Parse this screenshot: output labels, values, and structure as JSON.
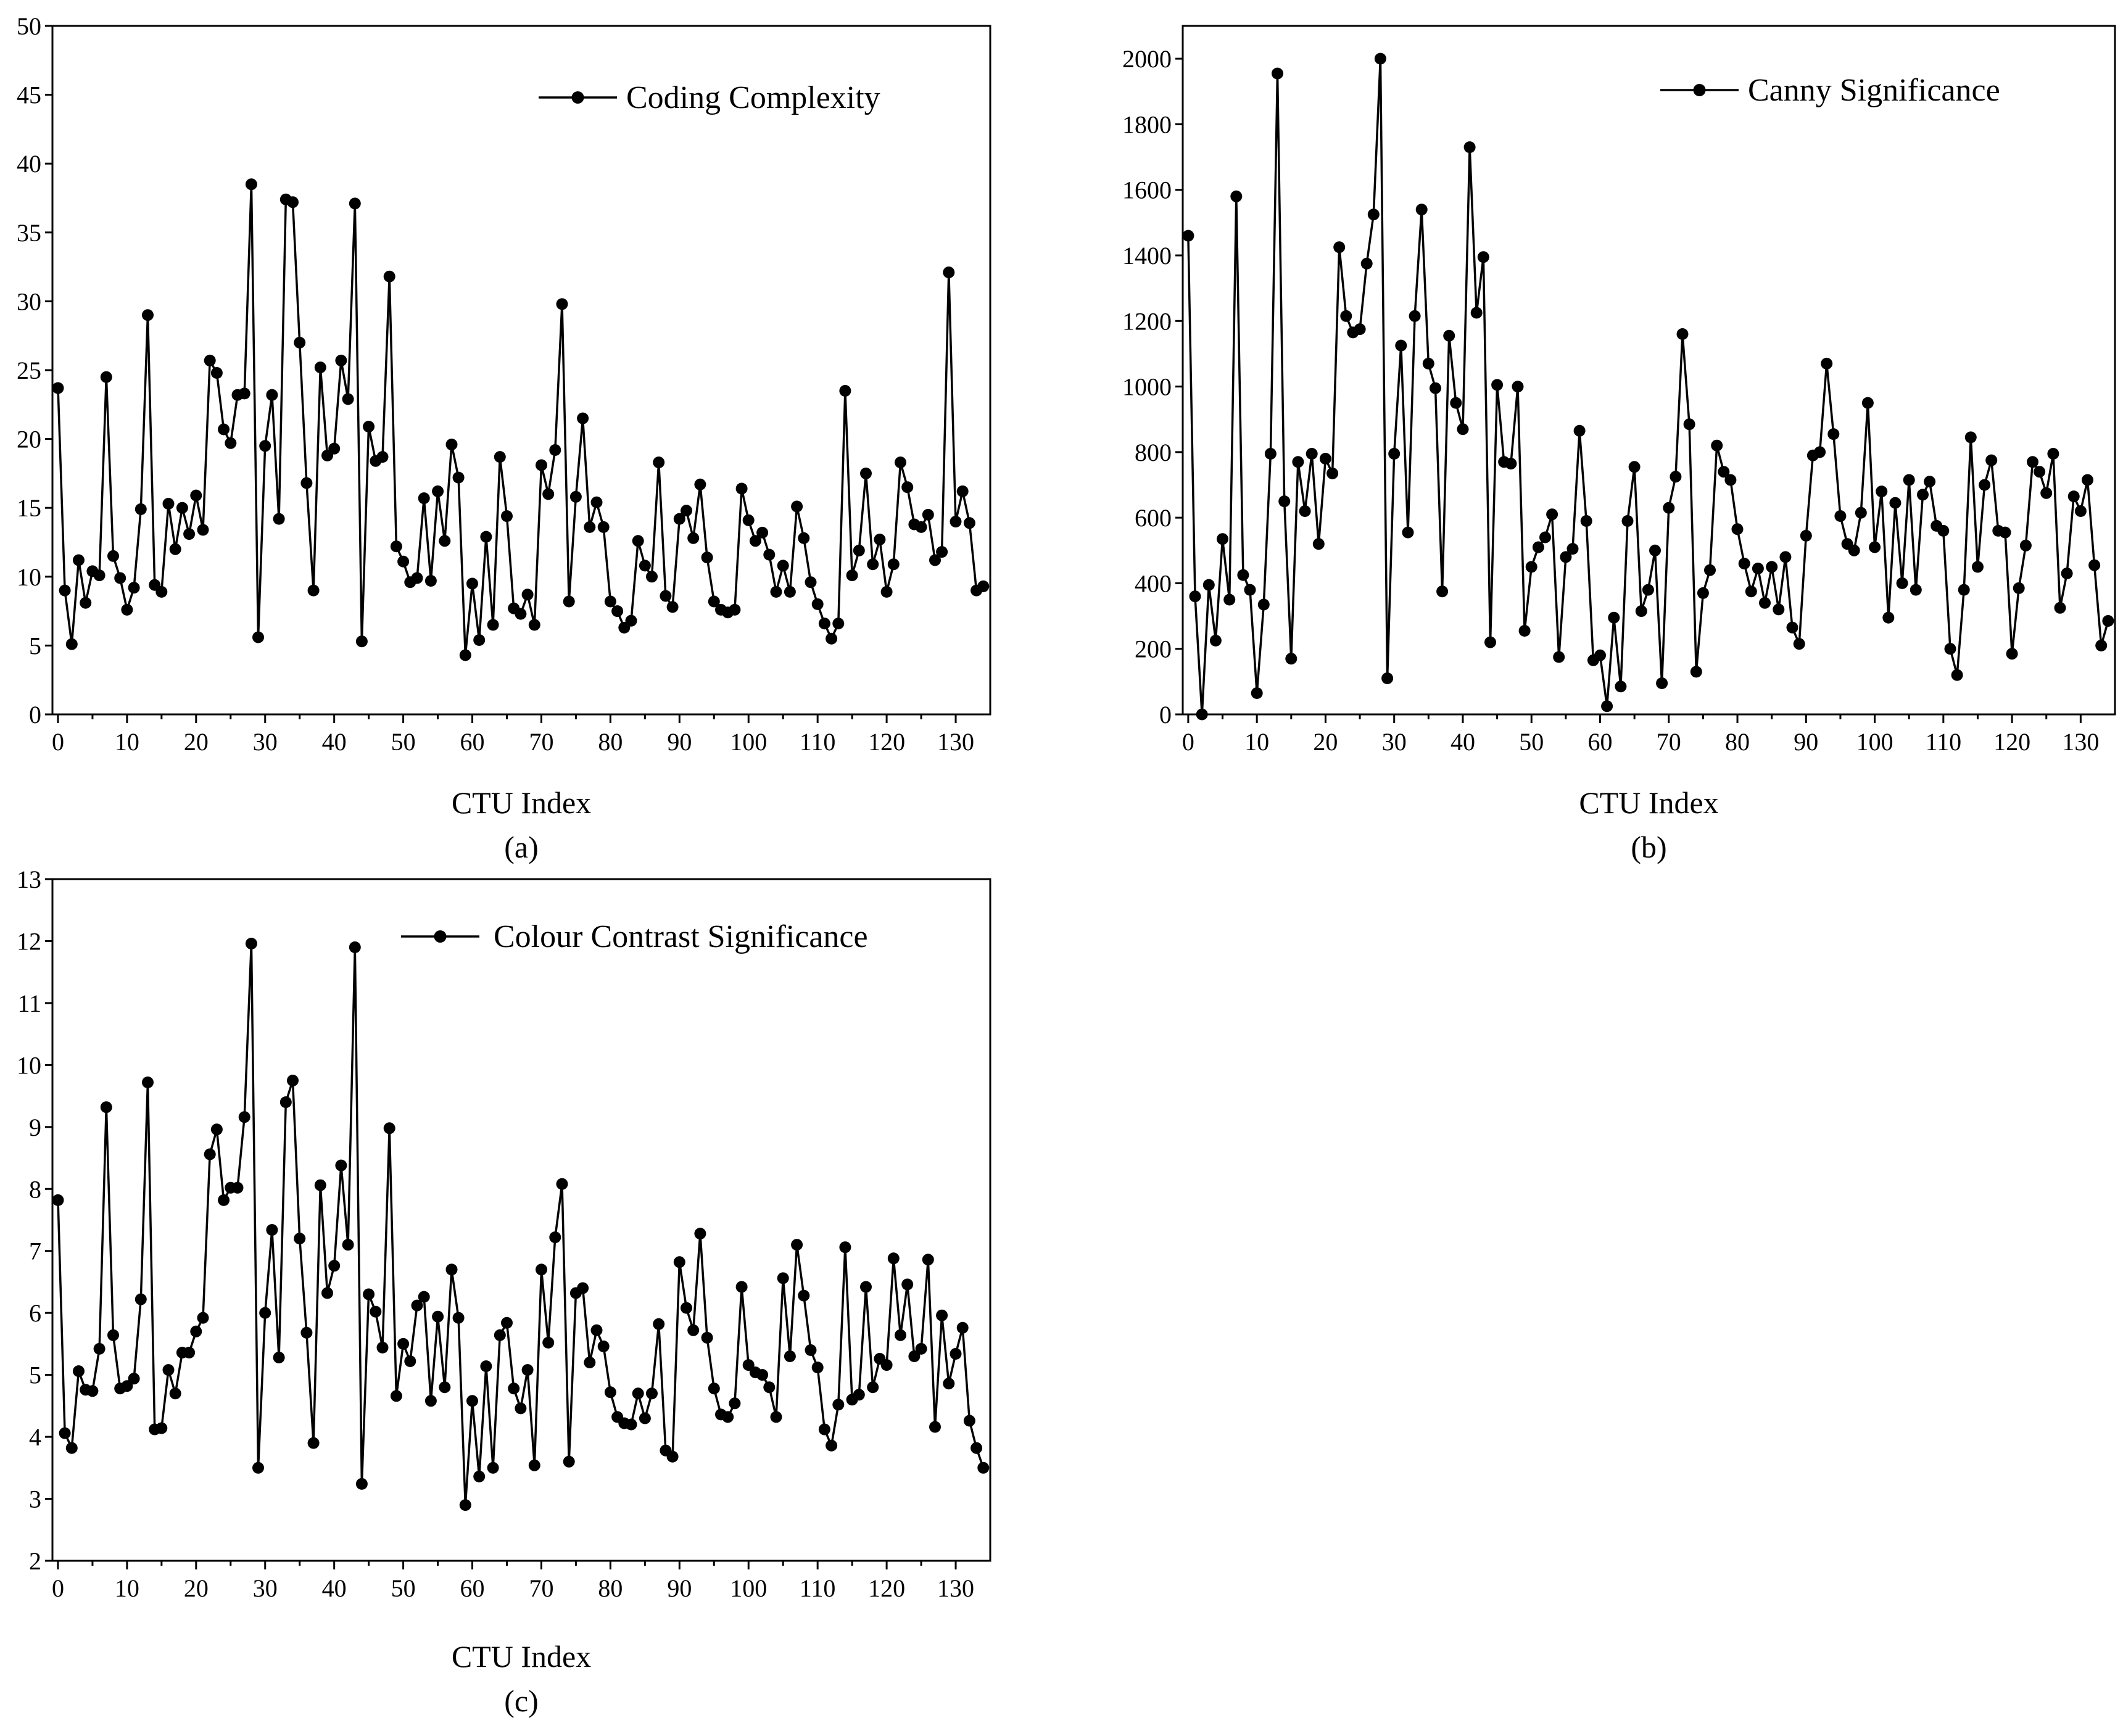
{
  "chart_data": [
    {
      "type": "line",
      "panel_label": "(a)",
      "xlabel": "CTU Index",
      "ylabel": "",
      "legend": "Coding Complexity",
      "legend_position": "top-right",
      "xlim": [
        -0.8,
        135
      ],
      "ylim": [
        0,
        50
      ],
      "xticks": [
        0,
        10,
        20,
        30,
        40,
        50,
        60,
        70,
        80,
        90,
        100,
        110,
        120,
        130
      ],
      "yticks": [
        0,
        5,
        10,
        15,
        20,
        25,
        30,
        35,
        40,
        45,
        50
      ],
      "series": [
        {
          "name": "Coding Complexity",
          "x_start": 0,
          "values": [
            23.7,
            9.0,
            5.1,
            11.2,
            8.1,
            10.4,
            10.1,
            24.5,
            11.5,
            9.9,
            7.6,
            9.2,
            14.9,
            29.0,
            9.4,
            8.9,
            15.3,
            12.0,
            15.0,
            13.1,
            15.9,
            13.4,
            25.7,
            24.8,
            20.7,
            19.7,
            23.2,
            23.3,
            38.5,
            5.6,
            19.5,
            23.2,
            14.2,
            37.4,
            37.2,
            27.0,
            16.8,
            9.0,
            25.2,
            18.8,
            19.3,
            25.7,
            22.9,
            37.1,
            5.3,
            20.9,
            18.4,
            18.7,
            31.8,
            12.2,
            11.1,
            9.6,
            9.9,
            15.7,
            9.7,
            16.2,
            12.6,
            19.6,
            17.2,
            4.3,
            9.5,
            5.4,
            12.9,
            6.5,
            18.7,
            14.4,
            7.7,
            7.3,
            8.7,
            6.5,
            18.1,
            16.0,
            19.2,
            29.8,
            8.2,
            15.8,
            21.5,
            13.6,
            15.4,
            13.6,
            8.2,
            7.5,
            6.3,
            6.8,
            12.6,
            10.8,
            10.0,
            18.3,
            8.6,
            7.8,
            14.2,
            14.8,
            12.8,
            16.7,
            11.4,
            8.2,
            7.6,
            7.4,
            7.6,
            16.4,
            14.1,
            12.6,
            13.2,
            11.6,
            8.9,
            10.8,
            8.9,
            15.1,
            12.8,
            9.6,
            8.0,
            6.6,
            5.5,
            6.6,
            23.5,
            10.1,
            11.9,
            17.5,
            10.9,
            12.7,
            8.9,
            10.9,
            18.3,
            16.5,
            13.8,
            13.6,
            14.5,
            11.2,
            11.8,
            32.1,
            14.0,
            16.2,
            13.9,
            9.0,
            9.3
          ]
        }
      ]
    },
    {
      "type": "line",
      "panel_label": "(b)",
      "xlabel": "CTU Index",
      "ylabel": "",
      "legend": "Canny Significance",
      "legend_position": "top-right",
      "xlim": [
        -0.8,
        135
      ],
      "ylim": [
        0,
        2100
      ],
      "xticks": [
        0,
        10,
        20,
        30,
        40,
        50,
        60,
        70,
        80,
        90,
        100,
        110,
        120,
        130
      ],
      "yticks": [
        0,
        200,
        400,
        600,
        800,
        1000,
        1200,
        1400,
        1600,
        1800,
        2000
      ],
      "series": [
        {
          "name": "Canny Significance",
          "x_start": 0,
          "values": [
            1460,
            360,
            0,
            395,
            225,
            535,
            350,
            1580,
            425,
            380,
            65,
            335,
            795,
            1955,
            650,
            170,
            770,
            620,
            795,
            520,
            780,
            735,
            1425,
            1215,
            1165,
            1175,
            1375,
            1525,
            2000,
            110,
            795,
            1125,
            555,
            1215,
            1540,
            1070,
            995,
            375,
            1155,
            950,
            870,
            1730,
            1225,
            1395,
            220,
            1005,
            770,
            765,
            1000,
            255,
            450,
            510,
            540,
            610,
            175,
            480,
            505,
            865,
            590,
            165,
            180,
            25,
            295,
            85,
            590,
            755,
            315,
            380,
            500,
            95,
            630,
            725,
            1160,
            885,
            130,
            370,
            440,
            820,
            740,
            715,
            565,
            460,
            375,
            445,
            340,
            450,
            320,
            480,
            265,
            215,
            545,
            790,
            800,
            1070,
            855,
            605,
            520,
            500,
            615,
            950,
            510,
            680,
            295,
            645,
            400,
            715,
            380,
            670,
            710,
            575,
            560,
            200,
            120,
            380,
            845,
            450,
            700,
            775,
            560,
            555,
            185,
            385,
            515,
            770,
            740,
            675,
            795,
            325,
            430,
            665,
            620,
            715,
            455,
            210,
            285
          ]
        }
      ]
    },
    {
      "type": "line",
      "panel_label": "(c)",
      "xlabel": "CTU Index",
      "ylabel": "",
      "legend": "Colour Contrast Significance",
      "legend_position": "top-right",
      "xlim": [
        -0.8,
        135
      ],
      "ylim": [
        2,
        13
      ],
      "xticks": [
        0,
        10,
        20,
        30,
        40,
        50,
        60,
        70,
        80,
        90,
        100,
        110,
        120,
        130
      ],
      "yticks": [
        2,
        3,
        4,
        5,
        6,
        7,
        8,
        9,
        10,
        11,
        12,
        13
      ],
      "series": [
        {
          "name": "Colour Contrast Significance",
          "x_start": 0,
          "values": [
            7.82,
            4.06,
            3.82,
            5.06,
            4.76,
            4.74,
            5.42,
            9.32,
            5.64,
            4.78,
            4.82,
            4.94,
            6.22,
            9.72,
            4.12,
            4.14,
            5.08,
            4.7,
            5.36,
            5.36,
            5.7,
            5.92,
            8.56,
            8.96,
            7.82,
            8.02,
            8.02,
            9.16,
            11.96,
            3.5,
            6.0,
            7.34,
            5.28,
            9.4,
            9.75,
            7.2,
            5.68,
            3.9,
            8.06,
            6.32,
            6.76,
            8.38,
            7.1,
            11.9,
            3.24,
            6.3,
            6.02,
            5.44,
            8.98,
            4.66,
            5.5,
            5.22,
            6.12,
            6.26,
            4.58,
            5.94,
            4.8,
            6.7,
            5.92,
            2.9,
            4.58,
            3.36,
            5.14,
            3.5,
            5.64,
            5.84,
            4.78,
            4.46,
            5.08,
            3.54,
            6.7,
            5.52,
            7.22,
            8.08,
            3.6,
            6.32,
            6.4,
            5.2,
            5.72,
            5.46,
            4.72,
            4.32,
            4.22,
            4.2,
            4.7,
            4.3,
            4.7,
            5.82,
            3.78,
            3.68,
            6.82,
            6.08,
            5.72,
            7.28,
            5.6,
            4.78,
            4.36,
            4.32,
            4.54,
            6.42,
            5.16,
            5.04,
            5.0,
            4.8,
            4.32,
            6.56,
            5.3,
            7.1,
            6.28,
            5.4,
            5.12,
            4.12,
            3.86,
            4.52,
            7.06,
            4.6,
            4.68,
            6.42,
            4.8,
            5.26,
            5.16,
            6.88,
            5.64,
            6.46,
            5.3,
            5.42,
            6.86,
            4.16,
            5.96,
            4.86,
            5.34,
            5.76,
            4.26,
            3.82,
            3.5
          ]
        }
      ]
    }
  ]
}
